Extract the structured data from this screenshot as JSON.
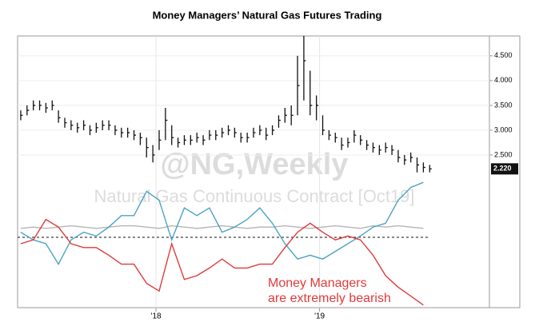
{
  "chart_data": [
    {
      "type": "ohlc",
      "title": "Money Managers’ Natural Gas Futures Trading",
      "watermark": "@NG,Weekly",
      "subtitle": "Natural Gas Continuous Contract [Oct19]",
      "x": [
        1,
        3,
        5,
        7,
        9,
        11,
        13,
        15,
        17,
        19,
        21,
        23,
        25,
        27,
        29,
        31,
        33,
        35,
        37,
        39,
        41,
        43,
        45,
        47,
        49,
        51,
        53,
        55,
        57,
        59,
        61,
        63,
        65,
        67,
        69,
        71,
        73,
        75,
        77,
        79,
        81,
        83,
        85,
        87,
        89,
        91,
        93,
        95,
        97,
        99,
        101,
        103,
        105,
        107,
        109,
        111,
        113,
        115,
        117,
        119,
        121,
        123,
        125,
        127,
        129,
        131
      ],
      "high": [
        3.4,
        3.5,
        3.6,
        3.6,
        3.55,
        3.6,
        3.4,
        3.25,
        3.2,
        3.15,
        3.2,
        3.1,
        3.15,
        3.2,
        3.2,
        3.1,
        3.05,
        3.05,
        3.0,
        2.95,
        2.85,
        2.7,
        3.0,
        3.45,
        3.1,
        2.85,
        2.9,
        2.9,
        2.95,
        2.9,
        3.0,
        3.0,
        3.05,
        3.1,
        3.05,
        2.95,
        2.95,
        3.05,
        3.1,
        3.05,
        3.1,
        3.3,
        3.45,
        3.5,
        4.5,
        4.9,
        4.2,
        3.7,
        3.3,
        3.0,
        2.95,
        2.85,
        2.85,
        3.0,
        2.9,
        2.8,
        2.75,
        2.7,
        2.75,
        2.7,
        2.6,
        2.5,
        2.55,
        2.45,
        2.35,
        2.3
      ],
      "low": [
        3.2,
        3.3,
        3.4,
        3.4,
        3.35,
        3.4,
        3.15,
        3.05,
        3.0,
        2.95,
        3.0,
        2.9,
        2.95,
        3.0,
        3.0,
        2.9,
        2.85,
        2.85,
        2.8,
        2.7,
        2.45,
        2.35,
        2.6,
        2.8,
        2.7,
        2.65,
        2.7,
        2.7,
        2.75,
        2.7,
        2.8,
        2.8,
        2.85,
        2.9,
        2.85,
        2.75,
        2.75,
        2.85,
        2.9,
        2.8,
        2.9,
        3.05,
        3.15,
        3.1,
        3.3,
        3.6,
        3.3,
        3.2,
        2.9,
        2.8,
        2.75,
        2.6,
        2.65,
        2.75,
        2.7,
        2.6,
        2.55,
        2.5,
        2.55,
        2.5,
        2.35,
        2.3,
        2.35,
        2.15,
        2.15,
        2.15
      ],
      "close": [
        3.3,
        3.4,
        3.5,
        3.5,
        3.45,
        3.5,
        3.25,
        3.15,
        3.1,
        3.05,
        3.1,
        3.0,
        3.05,
        3.1,
        3.1,
        3.0,
        2.95,
        2.95,
        2.9,
        2.85,
        2.65,
        2.5,
        2.8,
        3.2,
        2.85,
        2.75,
        2.8,
        2.8,
        2.85,
        2.8,
        2.9,
        2.9,
        2.95,
        3.0,
        2.95,
        2.85,
        2.85,
        2.95,
        3.0,
        2.9,
        3.0,
        3.2,
        3.3,
        3.3,
        3.9,
        4.4,
        3.5,
        3.5,
        3.0,
        2.9,
        2.85,
        2.7,
        2.75,
        2.9,
        2.8,
        2.7,
        2.65,
        2.6,
        2.65,
        2.6,
        2.45,
        2.4,
        2.45,
        2.3,
        2.25,
        2.22
      ],
      "color": "#111111",
      "last_price": {
        "value": 2.22,
        "label": "2.220"
      },
      "xlim": [
        0,
        150
      ],
      "xticks": [
        {
          "value": 44,
          "label": "'18"
        },
        {
          "value": 96,
          "label": "'19"
        }
      ],
      "ylim": [
        2.0,
        4.9
      ],
      "yticks": [
        {
          "value": 2.5,
          "label": "2.500"
        },
        {
          "value": 3.0,
          "label": "3.000"
        },
        {
          "value": 3.5,
          "label": "3.500"
        },
        {
          "value": 4.0,
          "label": "4.000"
        },
        {
          "value": 4.5,
          "label": "4.500"
        }
      ],
      "grid": true
    },
    {
      "type": "line",
      "x": [
        1,
        5,
        9,
        13,
        17,
        21,
        25,
        29,
        33,
        37,
        41,
        45,
        49,
        53,
        57,
        61,
        65,
        69,
        73,
        77,
        81,
        85,
        89,
        93,
        97,
        101,
        105,
        109,
        113,
        117,
        121,
        125,
        129
      ],
      "series": [
        {
          "color": "#b5b5b5",
          "values": [
            62,
            63,
            62,
            63,
            64,
            63,
            62,
            63,
            64,
            64,
            63,
            62,
            64,
            63,
            62,
            63,
            64,
            63,
            62,
            63,
            63,
            64,
            63,
            62,
            63,
            64,
            63,
            62,
            64,
            63,
            64,
            63,
            62
          ]
        },
        {
          "color": "#4aa3c4",
          "values": [
            59,
            53,
            50,
            34,
            53,
            59,
            56,
            63,
            72,
            72,
            91,
            84,
            53,
            78,
            72,
            78,
            59,
            63,
            69,
            78,
            66,
            50,
            38,
            41,
            38,
            44,
            50,
            56,
            63,
            66,
            84,
            94,
            98
          ]
        },
        {
          "color": "#e03a3a",
          "values": [
            50,
            53,
            69,
            63,
            50,
            47,
            47,
            41,
            34,
            34,
            19,
            13,
            50,
            22,
            25,
            31,
            38,
            31,
            31,
            34,
            34,
            47,
            59,
            66,
            59,
            53,
            56,
            53,
            41,
            25,
            16,
            9,
            2
          ]
        }
      ],
      "hline": 55,
      "xlim": [
        0,
        150
      ],
      "ylim": [
        0,
        100
      ],
      "annotation": [
        "Money Managers",
        "are extremely bearish"
      ],
      "annotation_color": "#e03a3a"
    }
  ]
}
